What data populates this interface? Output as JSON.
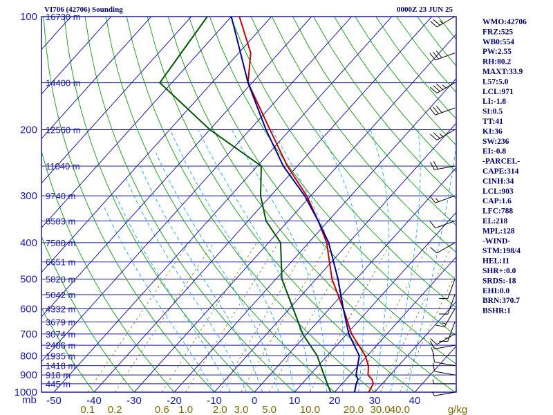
{
  "header": {
    "station": "VI706 (42706) Sounding",
    "time": "0000Z 23 JUN 25"
  },
  "colors": {
    "isobar": "#1a1aa0",
    "isotherm": "#1a1aa0",
    "dry_adiabat": "#22a022",
    "moist_adiabat": "#2aaaff",
    "mixing_ratio": "#9a8a40",
    "temperature": "#c00000",
    "dewpoint": "#000090",
    "parcel": "#000090",
    "dry_air_trace": "#005500",
    "wind": "#000000"
  },
  "chart_data": {
    "type": "line",
    "title": "VI706 (42706) Sounding",
    "pressure_ticks": [
      "100",
      "200",
      "300",
      "400",
      "500",
      "600",
      "700",
      "800",
      "900",
      "1000"
    ],
    "pressure_units": "mb",
    "height_labels": [
      {
        "p": 100,
        "label": "16730 m"
      },
      {
        "p": 150,
        "label": "14400 m"
      },
      {
        "p": 200,
        "label": "12560 m"
      },
      {
        "p": 250,
        "label": "11040 m"
      },
      {
        "p": 300,
        "label": "9740 m"
      },
      {
        "p": 350,
        "label": "8583 m"
      },
      {
        "p": 400,
        "label": "7580 m"
      },
      {
        "p": 450,
        "label": "6651 m"
      },
      {
        "p": 500,
        "label": "5820 m"
      },
      {
        "p": 550,
        "label": "5042 m"
      },
      {
        "p": 600,
        "label": "4332 m"
      },
      {
        "p": 650,
        "label": "3679 m"
      },
      {
        "p": 700,
        "label": "3074 m"
      },
      {
        "p": 750,
        "label": "2486 m"
      },
      {
        "p": 800,
        "label": "1935 m"
      },
      {
        "p": 850,
        "label": "1418 m"
      },
      {
        "p": 900,
        "label": "918 m"
      },
      {
        "p": 950,
        "label": "445 m"
      }
    ],
    "temperature_ticks": [
      "-50",
      "-40",
      "-30",
      "-20",
      "-10",
      "0",
      "10",
      "20",
      "30",
      "40"
    ],
    "mixing_ratio_ticks": [
      "0.1",
      "0.2",
      "0.6",
      "1.0",
      "2.0",
      "3.0",
      "5.0",
      "10.0",
      "20.0",
      "30.0",
      "40.0"
    ],
    "mixing_ratio_units": "g/kg",
    "series": [
      {
        "name": "Temperature",
        "points": [
          {
            "p": 1000,
            "t": 28.5
          },
          {
            "p": 950,
            "t": 27.8
          },
          {
            "p": 925,
            "t": 26.5
          },
          {
            "p": 900,
            "t": 24.5
          },
          {
            "p": 850,
            "t": 22.5
          },
          {
            "p": 800,
            "t": 19.5
          },
          {
            "p": 700,
            "t": 11.2
          },
          {
            "p": 600,
            "t": 3.5
          },
          {
            "p": 500,
            "t": -6.0
          },
          {
            "p": 400,
            "t": -15.5
          },
          {
            "p": 350,
            "t": -22.5
          },
          {
            "p": 300,
            "t": -31.0
          },
          {
            "p": 250,
            "t": -42.5
          },
          {
            "p": 200,
            "t": -55.0
          },
          {
            "p": 150,
            "t": -71.0
          },
          {
            "p": 125,
            "t": -77.0
          },
          {
            "p": 100,
            "t": -88.0
          }
        ]
      },
      {
        "name": "Dewpoint",
        "points": [
          {
            "p": 1000,
            "t": 25.0
          },
          {
            "p": 950,
            "t": 23.5
          },
          {
            "p": 925,
            "t": 23.0
          },
          {
            "p": 900,
            "t": 21.5
          },
          {
            "p": 850,
            "t": 19.8
          },
          {
            "p": 800,
            "t": 18.0
          },
          {
            "p": 700,
            "t": 10.5
          },
          {
            "p": 600,
            "t": 3.5
          },
          {
            "p": 500,
            "t": -4.5
          },
          {
            "p": 400,
            "t": -15.0
          },
          {
            "p": 350,
            "t": -22.5
          },
          {
            "p": 300,
            "t": -31.5
          },
          {
            "p": 250,
            "t": -43.5
          },
          {
            "p": 200,
            "t": -56.0
          },
          {
            "p": 150,
            "t": -71.0
          },
          {
            "p": 100,
            "t": -90.0
          }
        ]
      },
      {
        "name": "Dry trace",
        "points": [
          {
            "p": 1000,
            "t": 19.0
          },
          {
            "p": 900,
            "t": 13.5
          },
          {
            "p": 800,
            "t": 7.5
          },
          {
            "p": 700,
            "t": -1.0
          },
          {
            "p": 600,
            "t": -9.0
          },
          {
            "p": 500,
            "t": -18.5
          },
          {
            "p": 400,
            "t": -27.0
          },
          {
            "p": 350,
            "t": -35.5
          },
          {
            "p": 300,
            "t": -42.5
          },
          {
            "p": 250,
            "t": -49.0
          },
          {
            "p": 200,
            "t": -70.0
          },
          {
            "p": 150,
            "t": -93.0
          },
          {
            "p": 100,
            "t": -96.0
          }
        ]
      }
    ]
  },
  "wind_barbs": [
    {
      "p": 100,
      "dir": 240,
      "kt": 25
    },
    {
      "p": 125,
      "dir": 250,
      "kt": 30
    },
    {
      "p": 150,
      "dir": 240,
      "kt": 35
    },
    {
      "p": 175,
      "dir": 250,
      "kt": 30
    },
    {
      "p": 200,
      "dir": 240,
      "kt": 25
    },
    {
      "p": 250,
      "dir": 260,
      "kt": 20
    },
    {
      "p": 300,
      "dir": 250,
      "kt": 15
    },
    {
      "p": 350,
      "dir": 250,
      "kt": 10
    },
    {
      "p": 400,
      "dir": 240,
      "kt": 10
    },
    {
      "p": 500,
      "dir": 200,
      "kt": 10
    },
    {
      "p": 550,
      "dir": 200,
      "kt": 10
    },
    {
      "p": 600,
      "dir": 210,
      "kt": 15
    },
    {
      "p": 650,
      "dir": 200,
      "kt": 15
    },
    {
      "p": 700,
      "dir": 240,
      "kt": 10
    },
    {
      "p": 750,
      "dir": 260,
      "kt": 10
    },
    {
      "p": 800,
      "dir": 270,
      "kt": 10
    },
    {
      "p": 850,
      "dir": 280,
      "kt": 10
    },
    {
      "p": 900,
      "dir": 280,
      "kt": 10
    },
    {
      "p": 950,
      "dir": 270,
      "kt": 5
    },
    {
      "p": 1000,
      "dir": 260,
      "kt": 5
    }
  ],
  "indices": [
    "WMO:42706",
    "FRZ:525",
    "WB0:554",
    "PW:2.55",
    "RH:80.2",
    "MAXT:33.9",
    "L57:5.0",
    "LCL:971",
    "LI:-1.8",
    "SI:0.5",
    "TT:41",
    "KI:36",
    "SW:236",
    "EI:-0.8",
    "-PARCEL-",
    "CAPE:314",
    "CINH:34",
    "LCL:903",
    "CAP:1.6",
    "LFC:788",
    "EL:218",
    "MPL:128",
    "-WIND-",
    "STM:198/4",
    "HEL:11",
    "SHR+:0.0",
    "SRDS:-18",
    "EHI:0.0",
    "BRN:370.7",
    "BSHR:1"
  ]
}
